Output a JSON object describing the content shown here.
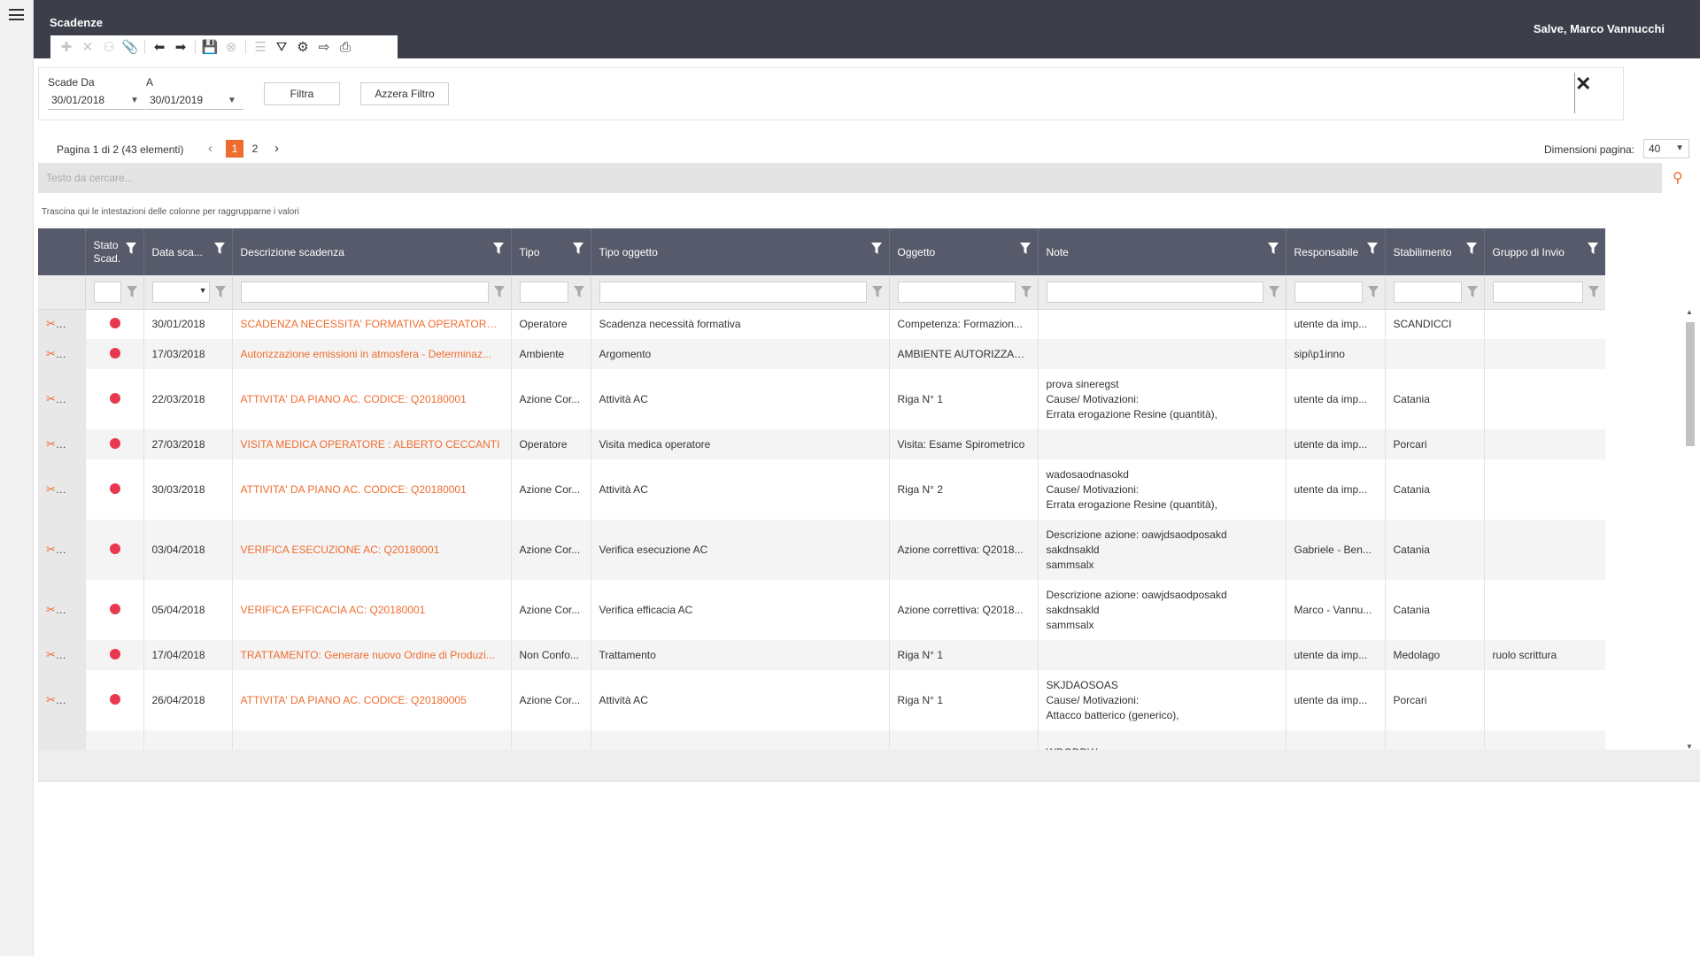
{
  "header": {
    "title": "Scadenze",
    "greeting": "Salve, Marco Vannucchi"
  },
  "toolbar": {
    "buttons": [
      {
        "icon": "plus-icon",
        "glyph": "✚"
      },
      {
        "icon": "delete-icon",
        "glyph": "✕"
      },
      {
        "icon": "hierarchy-icon",
        "glyph": "⚇"
      },
      {
        "icon": "attachment-icon",
        "glyph": "📎"
      },
      {
        "icon": "arrow-left-icon",
        "glyph": "⬅"
      },
      {
        "icon": "arrow-right-icon",
        "glyph": "➡"
      },
      {
        "icon": "save-icon",
        "glyph": "💾"
      },
      {
        "icon": "cancel-icon",
        "glyph": "⊗"
      },
      {
        "icon": "list-icon",
        "glyph": "☰"
      },
      {
        "icon": "filter-icon",
        "glyph": "⛛"
      },
      {
        "icon": "settings-icon",
        "glyph": "⚙"
      },
      {
        "icon": "export-icon",
        "glyph": "⇨"
      },
      {
        "icon": "print-icon",
        "glyph": "⎙"
      }
    ]
  },
  "filters": {
    "from_label": "Scade Da",
    "from_value": "30/01/2018",
    "to_label": "A",
    "to_value": "30/01/2019",
    "filter_button": "Filtra",
    "reset_button": "Azzera Filtro"
  },
  "pager": {
    "info": "Pagina 1 di 2 (43 elementi)",
    "pages": [
      "1",
      "2"
    ],
    "current_page": "1",
    "page_size_label": "Dimensioni pagina:",
    "page_size": "40"
  },
  "search": {
    "placeholder": "Testo da cercare..."
  },
  "group_hint": "Trascina qui le intestazioni delle colonne per raggrupparne i valori",
  "grid": {
    "columns": [
      "",
      "Stato Scad.",
      "Data sca...",
      "Descrizione scadenza",
      "Tipo",
      "Tipo oggetto",
      "Oggetto",
      "Note",
      "Responsabile",
      "Stabilimento",
      "Gruppo di Invio"
    ],
    "status_color": "#e8384f",
    "rows": [
      {
        "date": "30/01/2018",
        "desc": "SCADENZA NECESSITA' FORMATIVA OPERATORE: S...",
        "tipo": "Operatore",
        "tipo_oggetto": "Scadenza necessità formativa",
        "oggetto": "Competenza: Formazion...",
        "note": [],
        "resp": "utente da imp...",
        "stab": "SCANDICCI",
        "gruppo": ""
      },
      {
        "date": "17/03/2018",
        "desc": "Autorizzazione emissioni in atmosfera - Determinaz...",
        "tipo": "Ambiente",
        "tipo_oggetto": "Argomento",
        "oggetto": "AMBIENTE AUTORIZZAZI...",
        "note": [],
        "resp": "sipi\\p1inno",
        "stab": "",
        "gruppo": ""
      },
      {
        "date": "22/03/2018",
        "desc": "ATTIVITA' DA PIANO AC. CODICE: Q20180001",
        "tipo": "Azione Cor...",
        "tipo_oggetto": "Attività AC",
        "oggetto": "Riga N° 1",
        "note": [
          "prova sineregst",
          "Cause/ Motivazioni:",
          "Errata erogazione Resine (quantità),"
        ],
        "resp": "utente da imp...",
        "stab": "Catania",
        "gruppo": ""
      },
      {
        "date": "27/03/2018",
        "desc": "VISITA MEDICA OPERATORE : ALBERTO CECCANTI",
        "tipo": "Operatore",
        "tipo_oggetto": "Visita medica operatore",
        "oggetto": "Visita: Esame Spirometrico",
        "note": [],
        "resp": "utente da imp...",
        "stab": "Porcari",
        "gruppo": ""
      },
      {
        "date": "30/03/2018",
        "desc": "ATTIVITA' DA PIANO AC. CODICE: Q20180001",
        "tipo": "Azione Cor...",
        "tipo_oggetto": "Attività AC",
        "oggetto": "Riga N° 2",
        "note": [
          "wadosaodnasokd",
          "Cause/ Motivazioni:",
          "Errata erogazione Resine (quantità),"
        ],
        "resp": "utente da imp...",
        "stab": "Catania",
        "gruppo": ""
      },
      {
        "date": "03/04/2018",
        "desc": "VERIFICA ESECUZIONE AC: Q20180001",
        "tipo": "Azione Cor...",
        "tipo_oggetto": "Verifica esecuzione AC",
        "oggetto": "Azione correttiva: Q2018...",
        "note": [
          "Descrizione azione: oawjdsaodposakd",
          "sakdnsakld",
          "sammsalx"
        ],
        "resp": "Gabriele - Ben...",
        "stab": "Catania",
        "gruppo": ""
      },
      {
        "date": "05/04/2018",
        "desc": "VERIFICA EFFICACIA AC: Q20180001",
        "tipo": "Azione Cor...",
        "tipo_oggetto": "Verifica efficacia AC",
        "oggetto": "Azione correttiva: Q2018...",
        "note": [
          "Descrizione azione: oawjdsaodposakd",
          "sakdnsakld",
          "sammsalx"
        ],
        "resp": "Marco - Vannu...",
        "stab": "Catania",
        "gruppo": ""
      },
      {
        "date": "17/04/2018",
        "desc": "TRATTAMENTO: Generare nuovo Ordine di Produzi...",
        "tipo": "Non Confo...",
        "tipo_oggetto": "Trattamento",
        "oggetto": "Riga N° 1",
        "note": [],
        "resp": "utente da imp...",
        "stab": "Medolago",
        "gruppo": "ruolo scrittura"
      },
      {
        "date": "26/04/2018",
        "desc": "ATTIVITA' DA PIANO AC. CODICE: Q20180005",
        "tipo": "Azione Cor...",
        "tipo_oggetto": "Attività AC",
        "oggetto": "Riga N° 1",
        "note": [
          "SKJDAOSOAS",
          "Cause/ Motivazioni:",
          "Attacco batterico (generico),"
        ],
        "resp": "utente da imp...",
        "stab": "Porcari",
        "gruppo": ""
      },
      {
        "date": "",
        "desc": "",
        "tipo": "",
        "tipo_oggetto": "",
        "oggetto": "",
        "note": [
          "WDODDW"
        ],
        "resp": "",
        "stab": "",
        "gruppo": ""
      }
    ]
  }
}
